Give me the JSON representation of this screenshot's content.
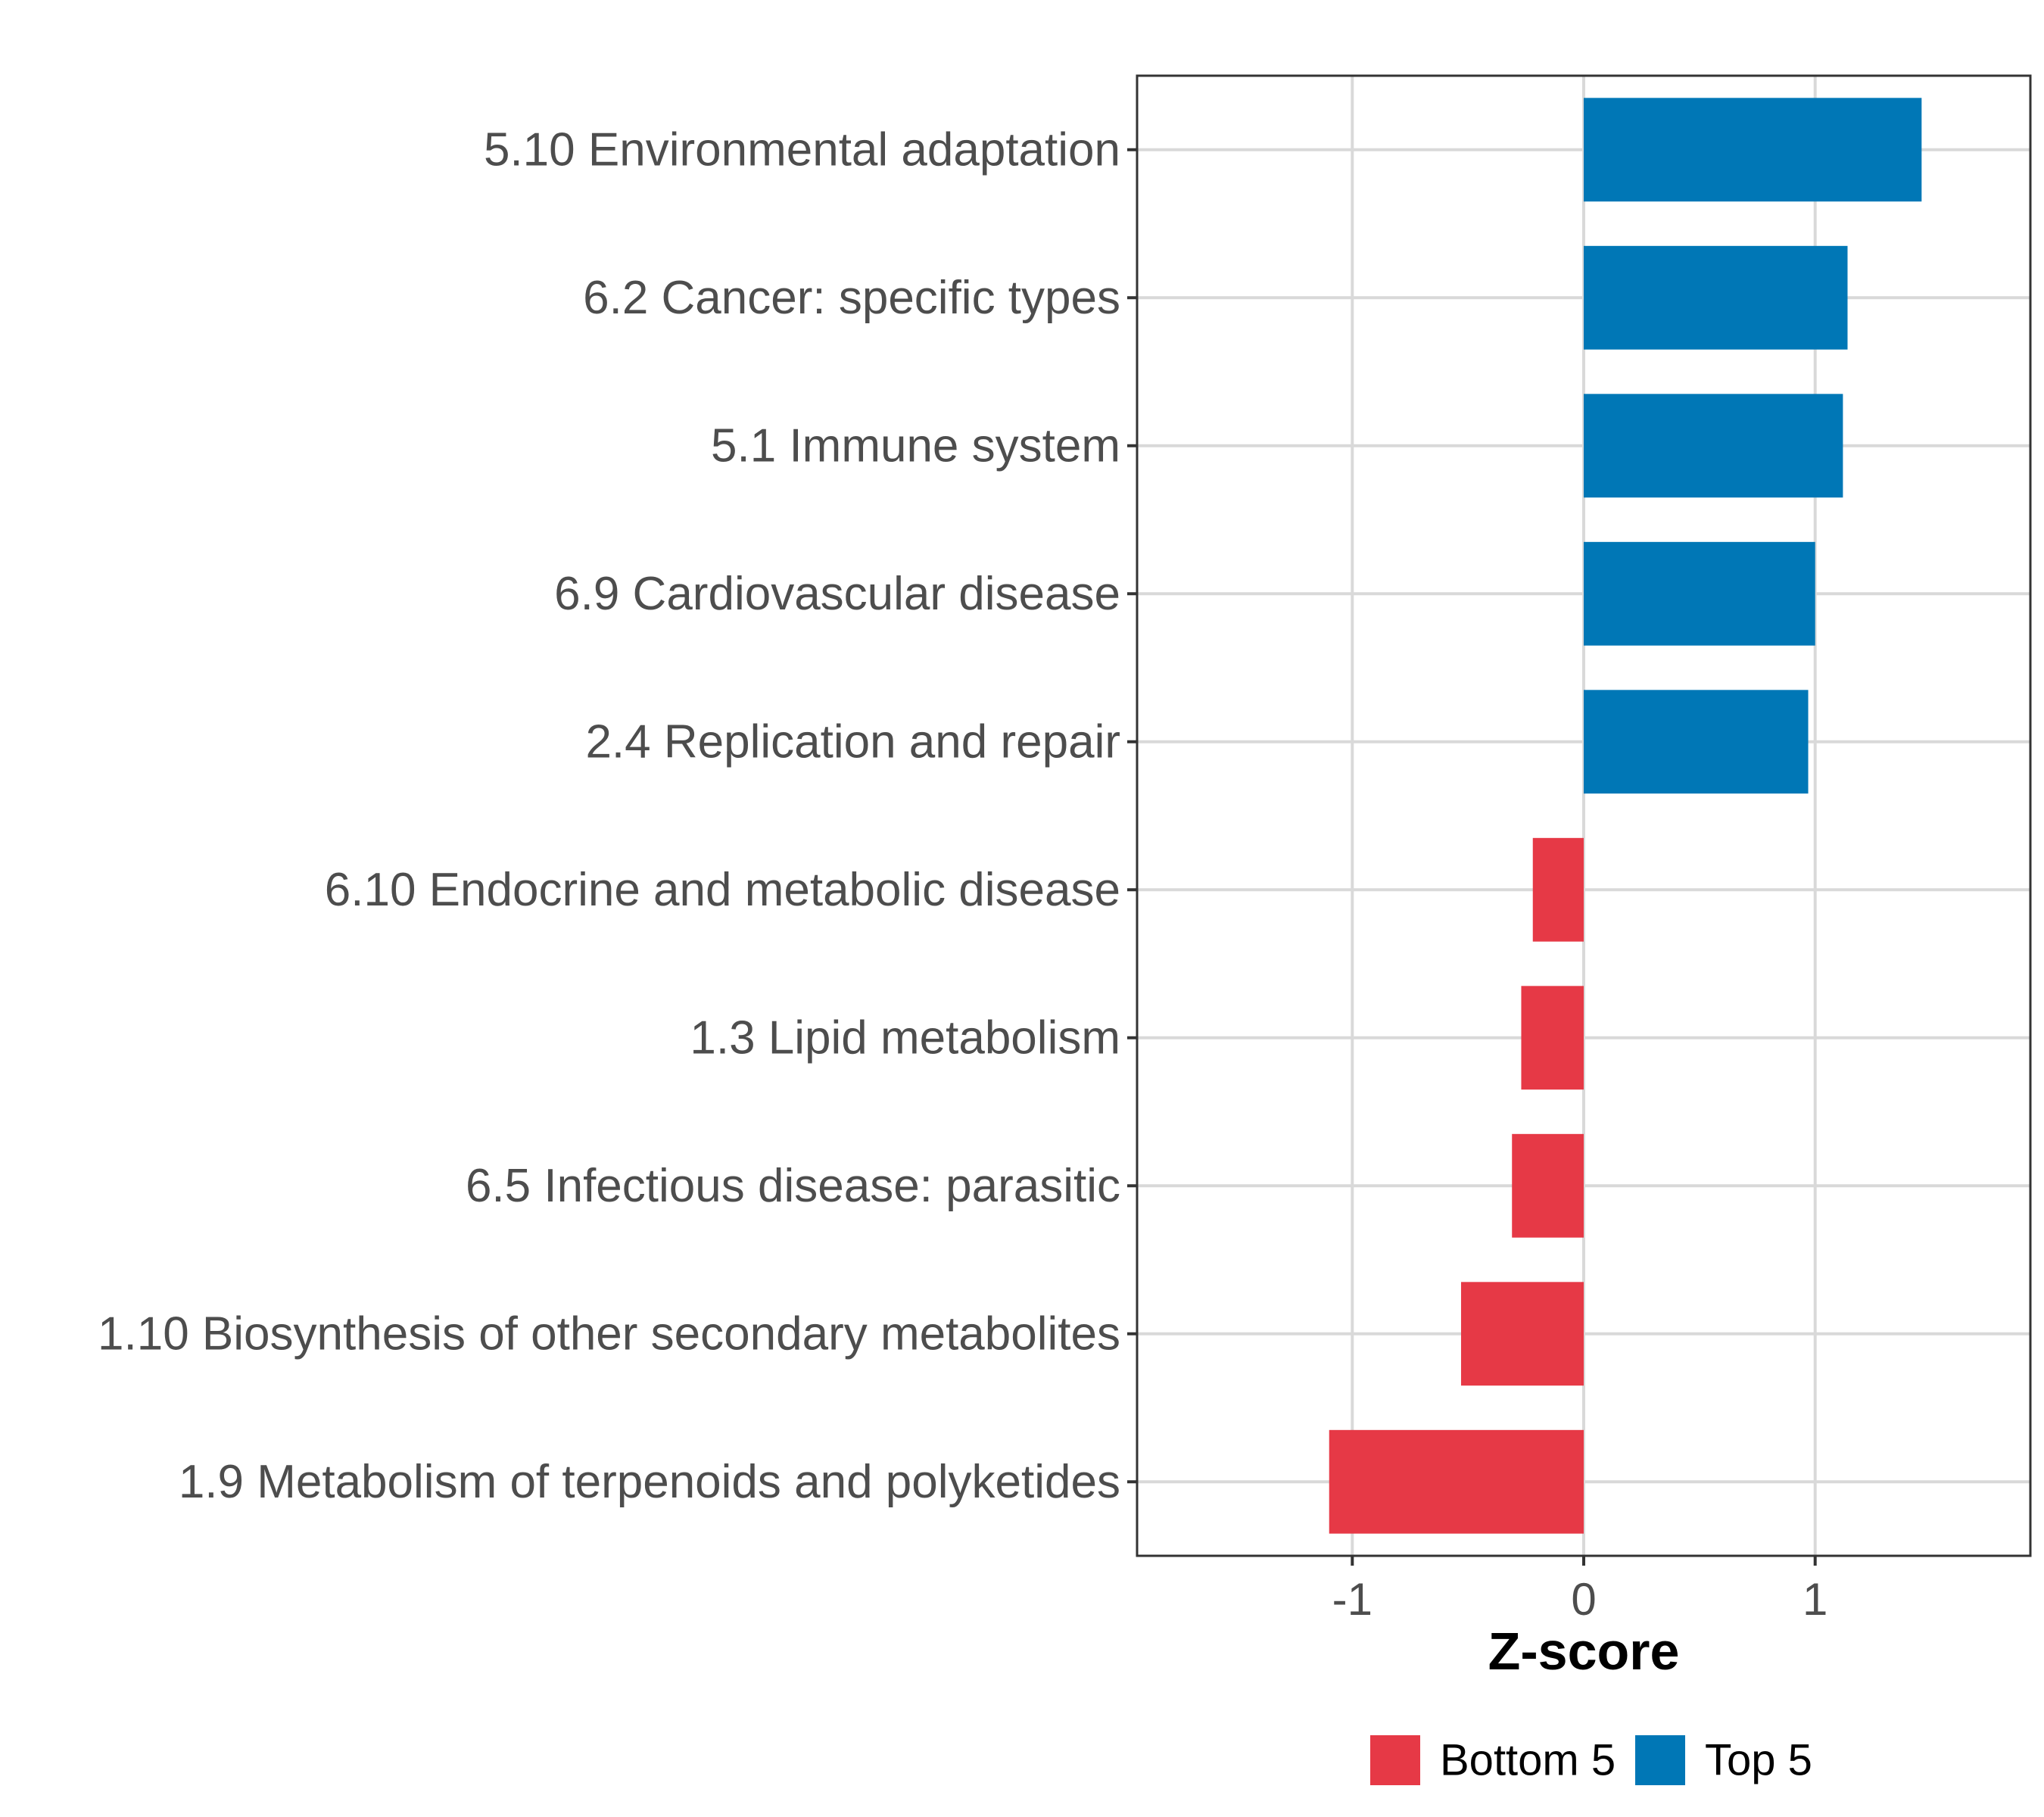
{
  "chart_data": {
    "type": "bar",
    "orientation": "horizontal",
    "categories": [
      "5.10 Environmental adaptation",
      "6.2 Cancer: specific types",
      "5.1 Immune system",
      "6.9 Cardiovascular disease",
      "2.4 Replication and repair",
      "6.10 Endocrine and metabolic disease",
      "1.3 Lipid metabolism",
      "6.5 Infectious disease: parasitic",
      "1.10 Biosynthesis of other secondary metabolites",
      "1.9 Metabolism of terpenoids and polyketides"
    ],
    "values": [
      1.46,
      1.14,
      1.12,
      1.0,
      0.97,
      -0.22,
      -0.27,
      -0.31,
      -0.53,
      -1.1
    ],
    "groups": [
      "Top 5",
      "Top 5",
      "Top 5",
      "Top 5",
      "Top 5",
      "Bottom 5",
      "Bottom 5",
      "Bottom 5",
      "Bottom 5",
      "Bottom 5"
    ],
    "xlabel": "Z-score",
    "ylabel": "",
    "xlim": [
      -1.93,
      1.93
    ],
    "xticks": [
      -1,
      0,
      1
    ],
    "xtick_labels": [
      "-1",
      "0",
      "1"
    ],
    "grid": true,
    "legend": {
      "position": "bottom",
      "entries": [
        {
          "label": "Bottom 5",
          "color": "#e63946"
        },
        {
          "label": "Top 5",
          "color": "#0077b6"
        }
      ]
    }
  }
}
